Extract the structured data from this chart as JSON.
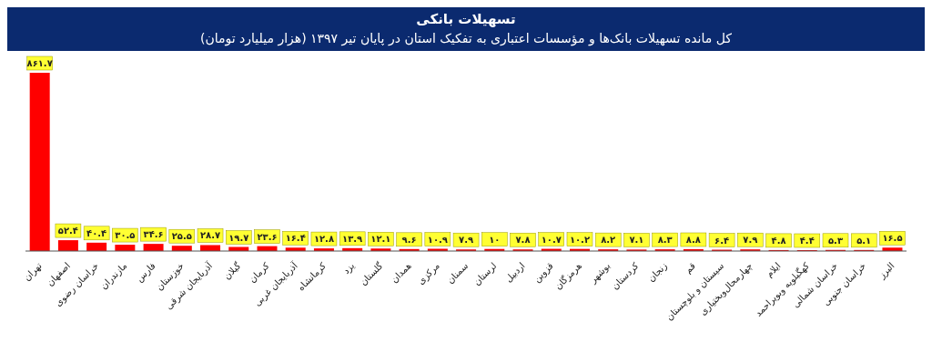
{
  "chart_data": {
    "type": "bar",
    "title": "تسهیلات بانکی",
    "subtitle": "کل مانده تسهیلات بانک‌ها و مؤسسات اعتباری  به تفکیک استان در پایان تیر ۱۳۹۷ (هزار میلیارد تومان)",
    "categories": [
      "تهران",
      "اصفهان",
      "خراسان رضوی",
      "مازندران",
      "فارس",
      "خوزستان",
      "آذربایجان شرقی",
      "گیلان",
      "کرمان",
      "آذربایجان غربی",
      "کرمانشاه",
      "یزد",
      "گلستان",
      "همدان",
      "مرکزی",
      "سمنان",
      "لرستان",
      "اردبیل",
      "قزوین",
      "هرمزگان",
      "بوشهر",
      "کردستان",
      "زنجان",
      "قم",
      "سیستان و بلوچستان",
      "چهارمحال‌وبختیاری",
      "ایلام",
      "کهگیلویه وبویراحمد",
      "خراسان شمالی",
      "خراسان جنوبی",
      "البرز"
    ],
    "values": [
      861.7,
      52.4,
      40.4,
      30.5,
      34.6,
      25.5,
      28.7,
      19.7,
      23.6,
      16.4,
      12.8,
      13.9,
      12.1,
      9.6,
      10.9,
      7.9,
      10,
      7.8,
      10.7,
      10.2,
      8.2,
      7.1,
      8.3,
      8.8,
      6.4,
      7.9,
      4.8,
      4.4,
      5.3,
      5.1,
      16.5
    ],
    "value_labels": [
      "۸۶۱.۷",
      "۵۲.۴",
      "۴۰.۴",
      "۳۰.۵",
      "۳۴.۶",
      "۲۵.۵",
      "۲۸.۷",
      "۱۹.۷",
      "۲۳.۶",
      "۱۶.۴",
      "۱۲.۸",
      "۱۳.۹",
      "۱۲.۱",
      "۹.۶",
      "۱۰.۹",
      "۷.۹",
      "۱۰",
      "۷.۸",
      "۱۰.۷",
      "۱۰.۲",
      "۸.۲",
      "۷.۱",
      "۸.۳",
      "۸.۸",
      "۶.۴",
      "۷.۹",
      "۴.۸",
      "۴.۴",
      "۵.۳",
      "۵.۱",
      "۱۶.۵"
    ],
    "color": "#ff0000"
  }
}
